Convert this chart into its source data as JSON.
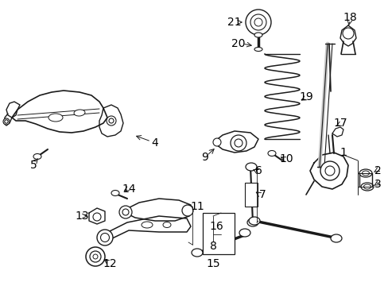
{
  "background_color": "#ffffff",
  "line_color": "#1a1a1a",
  "label_color": "#000000",
  "label_fontsize": 10,
  "fig_w": 4.89,
  "fig_h": 3.6,
  "dpi": 100
}
